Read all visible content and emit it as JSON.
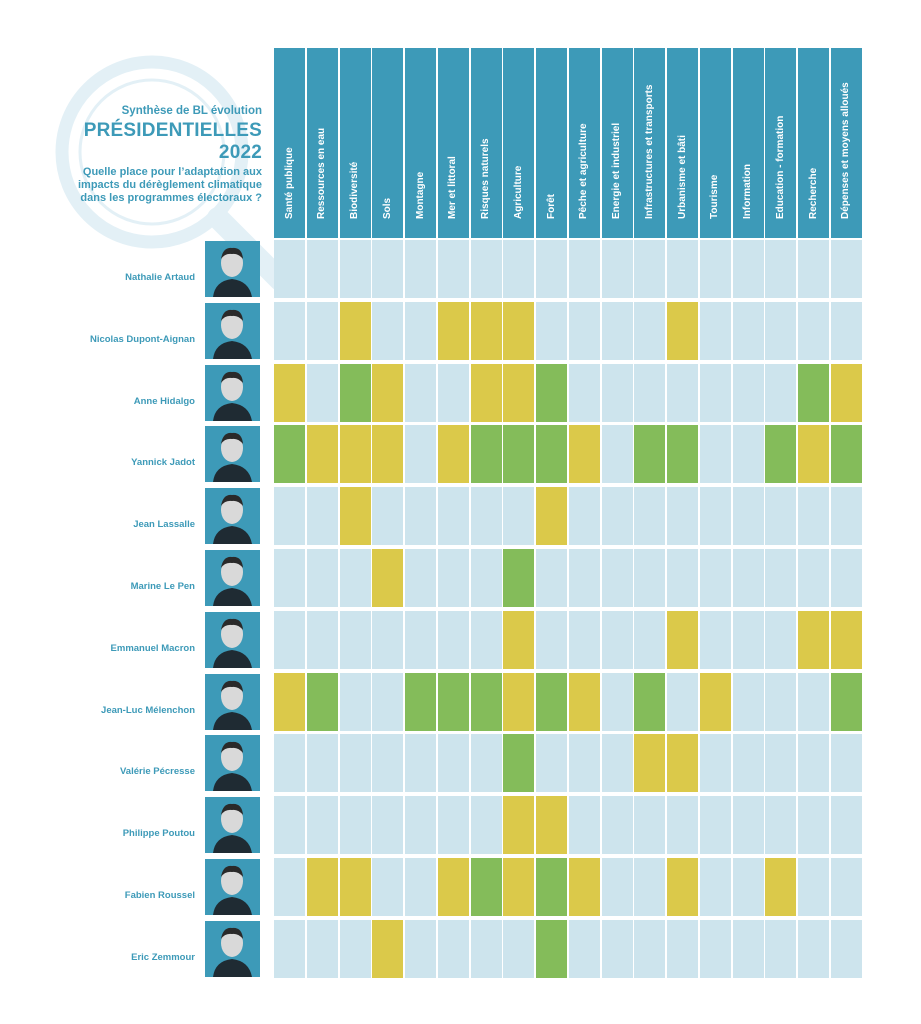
{
  "header": {
    "small": "Synthèse de BL évolution",
    "title": "PRÉSIDENTIELLES 2022",
    "question": "Quelle place pour l’adaptation aux impacts du dérèglement climatique dans les programmes électoraux ?"
  },
  "colors": {
    "accent": "#3d9ab8",
    "none": "#cde4ed",
    "partial": "#dbc94a",
    "strong": "#84bc5a",
    "magnifier": "#e3f0f6"
  },
  "chart_data": {
    "type": "heatmap",
    "encoding": {
      "0": "none",
      "1": "partial",
      "2": "strong"
    },
    "columns": [
      "Santé publique",
      "Ressources en eau",
      "Biodiversité",
      "Sols",
      "Montagne",
      "Mer et littoral",
      "Risques naturels",
      "Agriculture",
      "Forêt",
      "Pêche et agriculture",
      "Energie et industriel",
      "Infrastructures et transports",
      "Urbanisme et bâti",
      "Tourisme",
      "Information",
      "Education - formation",
      "Recherche",
      "Dépenses et moyens alloués"
    ],
    "rows": [
      {
        "name": "Nathalie Artaud",
        "values": [
          0,
          0,
          0,
          0,
          0,
          0,
          0,
          0,
          0,
          0,
          0,
          0,
          0,
          0,
          0,
          0,
          0,
          0
        ]
      },
      {
        "name": "Nicolas Dupont-Aignan",
        "values": [
          0,
          0,
          1,
          0,
          0,
          1,
          1,
          1,
          0,
          0,
          0,
          0,
          1,
          0,
          0,
          0,
          0,
          0
        ]
      },
      {
        "name": "Anne Hidalgo",
        "values": [
          1,
          0,
          2,
          1,
          0,
          0,
          1,
          1,
          2,
          0,
          0,
          0,
          0,
          0,
          0,
          0,
          2,
          1
        ]
      },
      {
        "name": "Yannick Jadot",
        "values": [
          2,
          1,
          1,
          1,
          0,
          1,
          2,
          2,
          2,
          1,
          0,
          2,
          2,
          0,
          0,
          2,
          1,
          2
        ]
      },
      {
        "name": "Jean Lassalle",
        "values": [
          0,
          0,
          1,
          0,
          0,
          0,
          0,
          0,
          1,
          0,
          0,
          0,
          0,
          0,
          0,
          0,
          0,
          0
        ]
      },
      {
        "name": "Marine Le Pen",
        "values": [
          0,
          0,
          0,
          1,
          0,
          0,
          0,
          2,
          0,
          0,
          0,
          0,
          0,
          0,
          0,
          0,
          0,
          0
        ]
      },
      {
        "name": "Emmanuel Macron",
        "values": [
          0,
          0,
          0,
          0,
          0,
          0,
          0,
          1,
          0,
          0,
          0,
          0,
          1,
          0,
          0,
          0,
          1,
          1
        ]
      },
      {
        "name": "Jean-Luc Mélenchon",
        "values": [
          1,
          2,
          0,
          0,
          2,
          2,
          2,
          1,
          2,
          1,
          0,
          2,
          0,
          1,
          0,
          0,
          0,
          2
        ]
      },
      {
        "name": "Valérie Pécresse",
        "values": [
          0,
          0,
          0,
          0,
          0,
          0,
          0,
          2,
          0,
          0,
          0,
          1,
          1,
          0,
          0,
          0,
          0,
          0
        ]
      },
      {
        "name": "Philippe Poutou",
        "values": [
          0,
          0,
          0,
          0,
          0,
          0,
          0,
          1,
          1,
          0,
          0,
          0,
          0,
          0,
          0,
          0,
          0,
          0
        ]
      },
      {
        "name": "Fabien Roussel",
        "values": [
          0,
          1,
          1,
          0,
          0,
          1,
          2,
          1,
          2,
          1,
          0,
          0,
          1,
          0,
          0,
          1,
          0,
          0
        ]
      },
      {
        "name": "Eric Zemmour",
        "values": [
          0,
          0,
          0,
          1,
          0,
          0,
          0,
          0,
          2,
          0,
          0,
          0,
          0,
          0,
          0,
          0,
          0,
          0
        ]
      }
    ]
  }
}
